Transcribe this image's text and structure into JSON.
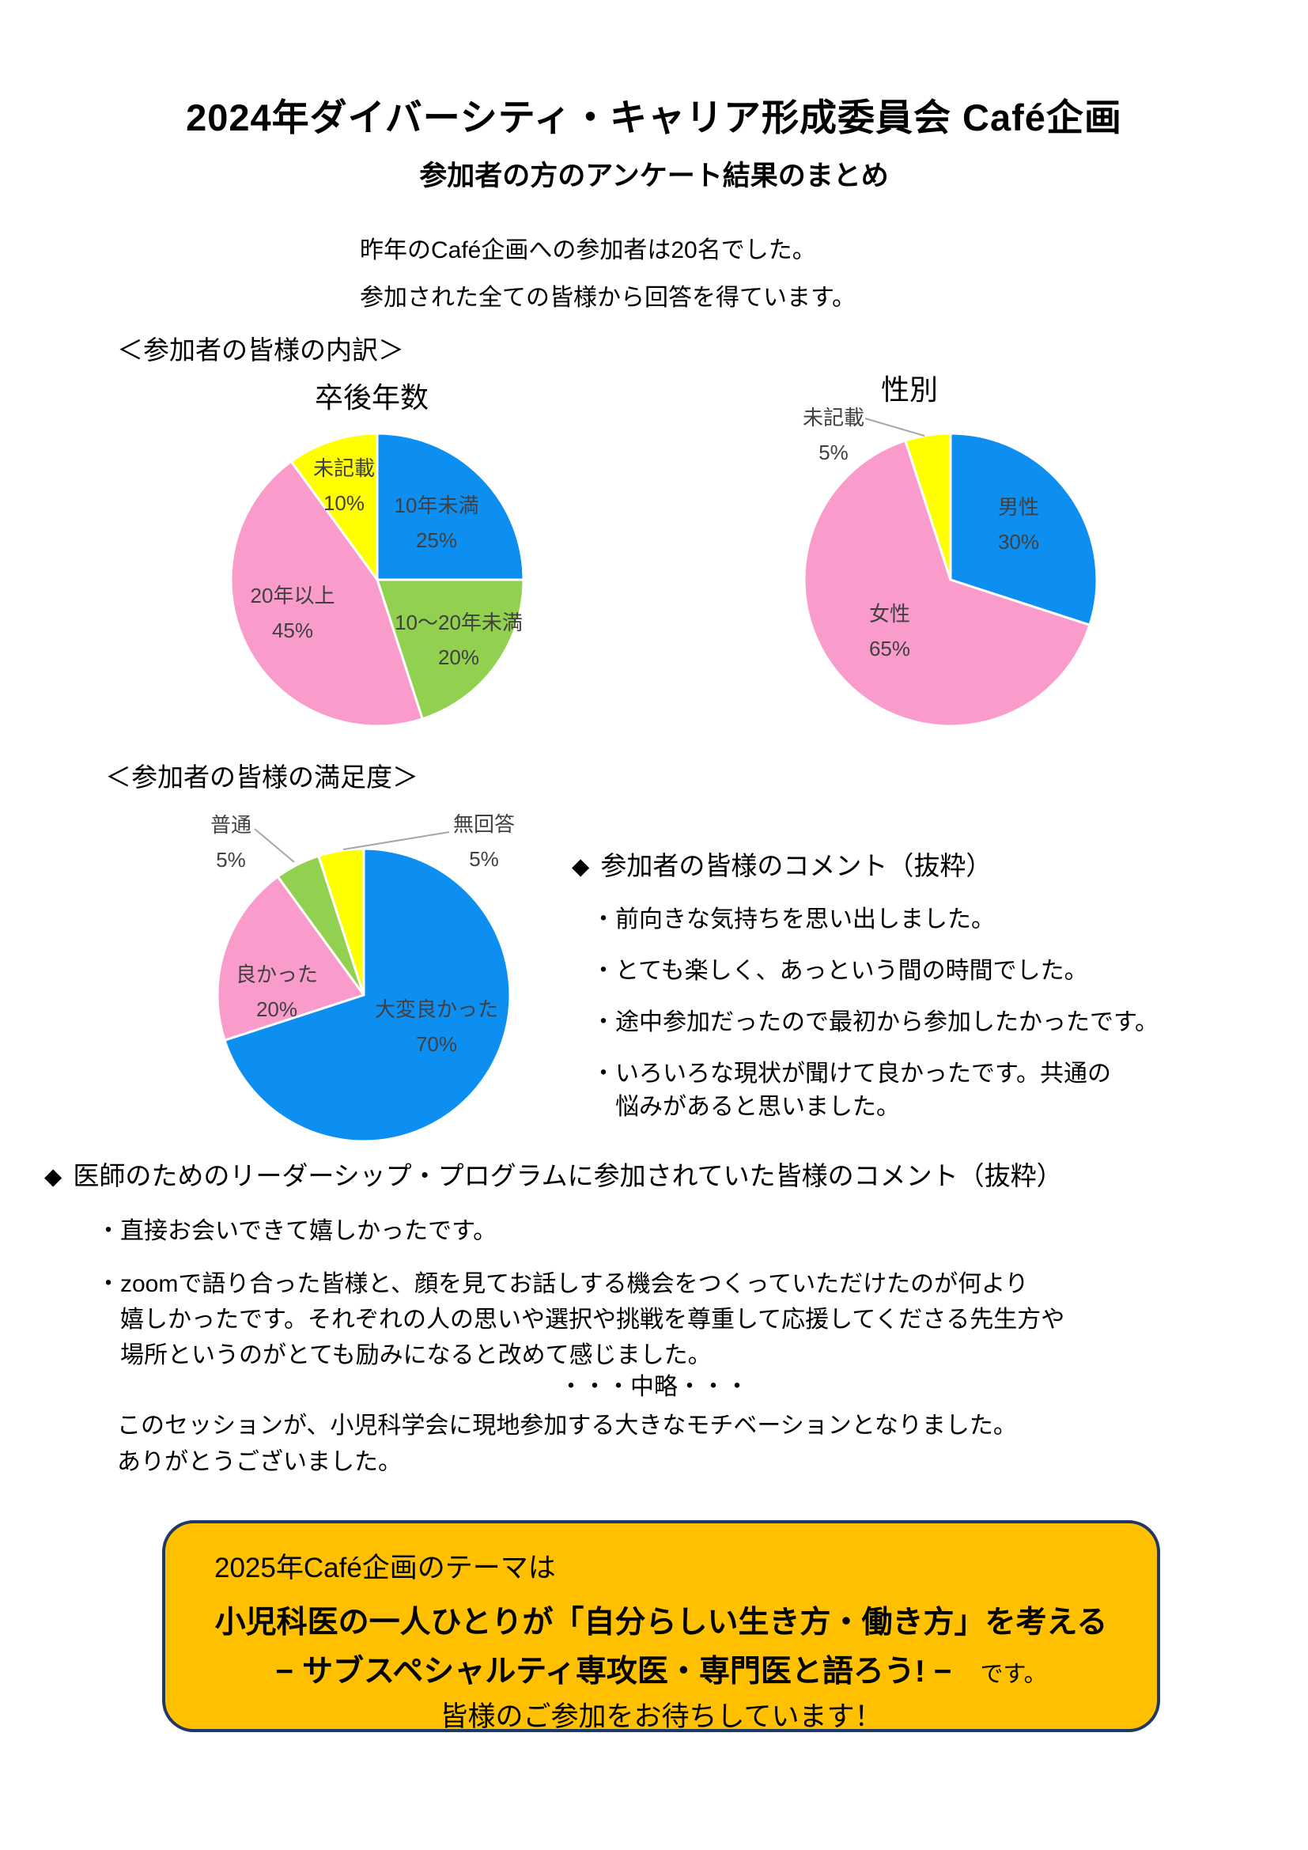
{
  "page": {
    "title": "2024年ダイバーシティ・キャリア形成委員会 Café企画",
    "subtitle": "参加者の方のアンケート結果のまとめ",
    "intro": [
      "昨年のCafé企画への参加者は20名でした。",
      "参加された全ての皆様から回答を得ています。"
    ]
  },
  "icons": {
    "diamond": "◆",
    "dot": "・"
  },
  "sections": {
    "breakdown_header": "＜参加者の皆様の内訳＞",
    "satisfaction_header": "＜参加者の皆様の満足度＞"
  },
  "colors": {
    "blue": "#0D8FF2",
    "pink": "#F99BCB",
    "green": "#92D050",
    "yellow": "#FFFF00",
    "label_gray": "#404040",
    "leader_gray": "#A6A6A6",
    "banner_bg": "#FFC000",
    "banner_border": "#1F3864"
  },
  "chart_data": [
    {
      "type": "pie",
      "title": "卒後年数",
      "start_angle": "top",
      "direction": "clockwise",
      "slices": [
        {
          "label": "10年未満",
          "value": 25,
          "pct_label": "25%",
          "color": "#0D8FF2",
          "label_pos": "inside",
          "label_xy": [
            275,
            128
          ]
        },
        {
          "label": "10～20年未満",
          "value": 20,
          "pct_label": "20%",
          "color": "#92D050",
          "label_pos": "inside",
          "label_xy": [
            303,
            276
          ]
        },
        {
          "label": "20年以上",
          "value": 45,
          "pct_label": "45%",
          "color": "#F99BCB",
          "label_pos": "inside",
          "label_xy": [
            93,
            242
          ]
        },
        {
          "label": "未記載",
          "value": 10,
          "pct_label": "10%",
          "color": "#FFFF00",
          "label_pos": "inside",
          "label_xy": [
            158,
            81
          ]
        }
      ]
    },
    {
      "type": "pie",
      "title": "性別",
      "start_angle": "top",
      "direction": "clockwise",
      "slices": [
        {
          "label": "男性",
          "value": 30,
          "pct_label": "30%",
          "color": "#0D8FF2",
          "label_pos": "inside",
          "label_xy": [
            286,
            130
          ]
        },
        {
          "label": "女性",
          "value": 65,
          "pct_label": "65%",
          "color": "#F99BCB",
          "label_pos": "inside",
          "label_xy": [
            123,
            265
          ]
        },
        {
          "label": "未記載",
          "value": 5,
          "pct_label": "5%",
          "color": "#FFFF00",
          "label_pos": "outside",
          "label_xy": [
            52,
            17
          ],
          "leader": [
            [
              92,
              -4
            ],
            [
              167,
              18
            ]
          ]
        }
      ]
    },
    {
      "type": "pie",
      "title": "",
      "start_angle": "top",
      "direction": "clockwise",
      "slices": [
        {
          "label": "大変良かった",
          "value": 70,
          "pct_label": "70%",
          "color": "#0D8FF2",
          "label_pos": "inside",
          "label_xy": [
            292,
            240
          ]
        },
        {
          "label": "良かった",
          "value": 20,
          "pct_label": "20%",
          "color": "#F99BCB",
          "label_pos": "inside",
          "label_xy": [
            90,
            196
          ]
        },
        {
          "label": "普通",
          "value": 5,
          "pct_label": "5%",
          "color": "#92D050",
          "label_pos": "outside",
          "label_xy": [
            32,
            7
          ],
          "leader": [
            [
              62,
              -10
            ],
            [
              112,
              32
            ]
          ]
        },
        {
          "label": "無回答",
          "value": 5,
          "pct_label": "5%",
          "color": "#FFFF00",
          "label_pos": "outside",
          "label_xy": [
            352,
            6
          ],
          "leader": [
            [
              308,
              -6
            ],
            [
              174,
              16
            ]
          ]
        }
      ]
    }
  ],
  "comments_participants": {
    "header": "参加者の皆様のコメント（抜粋）",
    "items": [
      "前向きな気持ちを思い出しました。",
      "とても楽しく、あっという間の時間でした。",
      "途中参加だったので最初から参加したかったです。",
      "いろいろな現状が聞けて良かったです。共通の\n悩みがあると思いました。"
    ]
  },
  "comments_leadership": {
    "header": "医師のためのリーダーシップ・プログラムに参加されていた皆様のコメント（抜粋）",
    "items": [
      "直接お会いできて嬉しかったです。",
      "zoomで語り合った皆様と、顔を見てお話しする機会をつくっていただけたのが何より\n嬉しかったです。それぞれの人の思いや選択や挑戦を尊重して応援してくださる先生方や\n場所というのがとても励みになると改めて感じました。"
    ],
    "ellipsis": "・・・中略・・・",
    "closing": "このセッションが、小児科学会に現地参加する大きなモチベーションとなりました。\nありがとうございました。"
  },
  "banner": {
    "line1": "2025年Café企画のテーマは",
    "line2": "小児科医の一人ひとりが「自分らしい生き方・働き方」を考える",
    "line3": "− サブスペシャルティ専攻医・専門医と語ろう! −",
    "line3_suffix": "です。",
    "line4": "皆様のご参加をお待ちしています！"
  }
}
